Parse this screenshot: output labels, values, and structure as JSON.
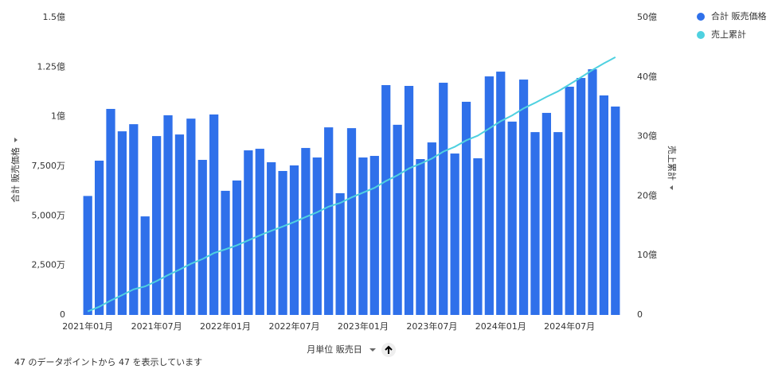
{
  "chart_data": {
    "type": "bar_line",
    "categories": [
      "2021年01月",
      null,
      null,
      null,
      null,
      null,
      "2021年07月",
      null,
      null,
      null,
      null,
      null,
      "2022年01月",
      null,
      null,
      null,
      null,
      null,
      "2022年07月",
      null,
      null,
      null,
      null,
      null,
      "2023年01月",
      null,
      null,
      null,
      null,
      null,
      "2023年07月",
      null,
      null,
      null,
      null,
      null,
      "2024年01月",
      null,
      null,
      null,
      null,
      null,
      "2024年07月",
      null,
      null,
      null,
      null
    ],
    "series": [
      {
        "name": "合計 販売価格",
        "color": "#2f70ea",
        "type": "bar",
        "values": [
          6000,
          7780,
          10390,
          9260,
          9620,
          4970,
          9020,
          10070,
          9100,
          9900,
          7820,
          10110,
          6260,
          6780,
          8300,
          8380,
          7700,
          7260,
          7540,
          8420,
          7940,
          9460,
          6140,
          9420,
          7940,
          8020,
          11590,
          9590,
          11550,
          7860,
          8700,
          11710,
          8140,
          10750,
          7900,
          12030,
          12270,
          9750,
          11870,
          9220,
          10190,
          9220,
          11510,
          11950,
          12390,
          11070,
          10510
        ]
      },
      {
        "name": "売上累計",
        "color": "#4fd1e0",
        "type": "line",
        "axis": "y2",
        "values": [
          0.6,
          1.38,
          2.42,
          3.34,
          4.31,
          4.8,
          5.7,
          6.71,
          7.62,
          8.61,
          9.39,
          10.4,
          11.03,
          11.71,
          12.54,
          13.38,
          14.15,
          14.87,
          15.63,
          16.47,
          17.26,
          18.21,
          18.82,
          19.76,
          20.56,
          21.36,
          22.52,
          23.48,
          24.63,
          25.42,
          26.29,
          27.46,
          28.27,
          29.35,
          30.14,
          31.34,
          32.57,
          33.54,
          34.73,
          35.65,
          36.67,
          37.59,
          38.75,
          39.94,
          41.18,
          42.29,
          43.34
        ]
      }
    ],
    "ylim": [
      0,
      15000
    ],
    "yticks": [
      0,
      {
        "value": 2500,
        "label": "2,500万"
      },
      {
        "value": 5000,
        "label": "5,000万"
      },
      {
        "value": 7500,
        "label": "7,500万"
      },
      {
        "value": 10000,
        "label": "1億"
      },
      {
        "value": 12500,
        "label": "1.25億"
      },
      {
        "value": 15000,
        "label": "1.5億"
      }
    ],
    "y2lim": [
      0,
      50
    ],
    "y2ticks": [
      0,
      {
        "value": 10,
        "label": "10億"
      },
      {
        "value": 20,
        "label": "20億"
      },
      {
        "value": 30,
        "label": "30億"
      },
      {
        "value": 40,
        "label": "40億"
      },
      {
        "value": 50,
        "label": "50億"
      }
    ],
    "y_label": "合計 販売価格",
    "y2_label": "売上累計",
    "x_label": "月単位 販売日",
    "footer": "47 のデータポイントから 47 を表示しています"
  }
}
